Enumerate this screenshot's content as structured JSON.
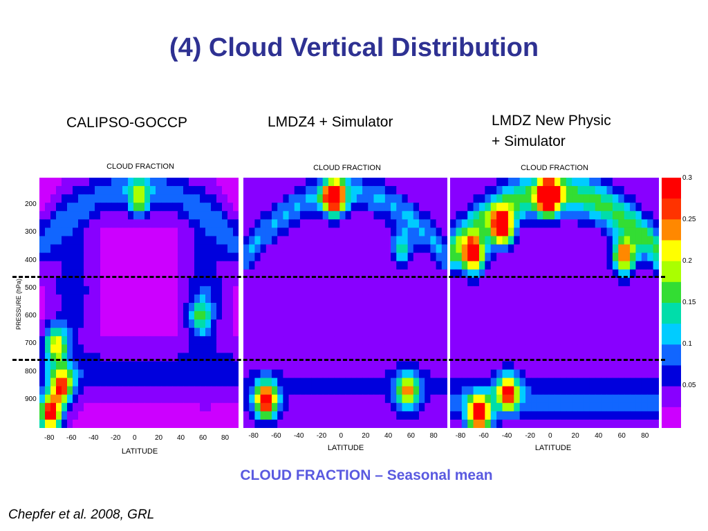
{
  "slide": {
    "title": "(4) Cloud Vertical Distribution",
    "caption": "CLOUD FRACTION – Seasonal mean",
    "citation": "Chepfer et al. 2008, GRL"
  },
  "colors": {
    "title": "#2e3192",
    "caption": "#5a5ae0",
    "colormap": [
      "#cc00ff",
      "#8800ff",
      "#0000dd",
      "#1166ff",
      "#00ccff",
      "#00ddaa",
      "#33dd33",
      "#aaff00",
      "#ffff00",
      "#ff8800",
      "#ff3300",
      "#ff0000"
    ]
  },
  "chart_data": [
    {
      "type": "heatmap",
      "model_label": "CALIPSO-GOCCP",
      "title": "CLOUD FRACTION",
      "xlabel": "LATITUDE",
      "ylabel": "PRESSURE (hPa)",
      "x_ticks": [
        "-80",
        "-60",
        "-40",
        "-20",
        "0",
        "20",
        "40",
        "60",
        "80"
      ],
      "y_ticks": [
        "200",
        "300",
        "400",
        "500",
        "600",
        "700",
        "800",
        "900"
      ],
      "xlim": [
        -90,
        90
      ],
      "ylim": [
        1000,
        100
      ],
      "features": [
        {
          "lat": 0,
          "p": 180,
          "value": 0.15
        },
        {
          "lat": -70,
          "p": 850,
          "value": 0.25
        },
        {
          "lat": -75,
          "p": 700,
          "value": 0.2
        },
        {
          "lat": -80,
          "p": 950,
          "value": 0.3
        },
        {
          "lat": 55,
          "p": 600,
          "value": 0.12
        }
      ]
    },
    {
      "type": "heatmap",
      "model_label": "LMDZ4 + Simulator",
      "title": "CLOUD FRACTION",
      "xlabel": "LATITUDE",
      "x_ticks": [
        "-80",
        "-60",
        "-40",
        "-20",
        "0",
        "20",
        "40",
        "60",
        "80"
      ],
      "xlim": [
        -90,
        90
      ],
      "ylim": [
        1000,
        100
      ],
      "features": [
        {
          "lat": -10,
          "p": 170,
          "value": 0.3
        },
        {
          "lat": -70,
          "p": 900,
          "value": 0.3
        },
        {
          "lat": 55,
          "p": 870,
          "value": 0.2
        },
        {
          "lat": 50,
          "p": 350,
          "value": 0.12
        }
      ]
    },
    {
      "type": "heatmap",
      "model_label": "LMDZ New Physic\n+ Simulator",
      "title": "CLOUD FRACTION",
      "xlabel": "LATITUDE",
      "x_ticks": [
        "-80",
        "-60",
        "-40",
        "-20",
        "0",
        "20",
        "40",
        "60",
        "80"
      ],
      "xlim": [
        -90,
        90
      ],
      "ylim": [
        1000,
        100
      ],
      "features": [
        {
          "lat": -5,
          "p": 170,
          "value": 0.3
        },
        {
          "lat": -45,
          "p": 280,
          "value": 0.3
        },
        {
          "lat": -70,
          "p": 380,
          "value": 0.28
        },
        {
          "lat": 60,
          "p": 380,
          "value": 0.25
        },
        {
          "lat": -65,
          "p": 950,
          "value": 0.3
        },
        {
          "lat": -40,
          "p": 870,
          "value": 0.25
        }
      ]
    }
  ],
  "colorbar": {
    "ticks": [
      "0.3",
      "0.25",
      "0.2",
      "0.15",
      "0.1",
      "0.05"
    ]
  }
}
